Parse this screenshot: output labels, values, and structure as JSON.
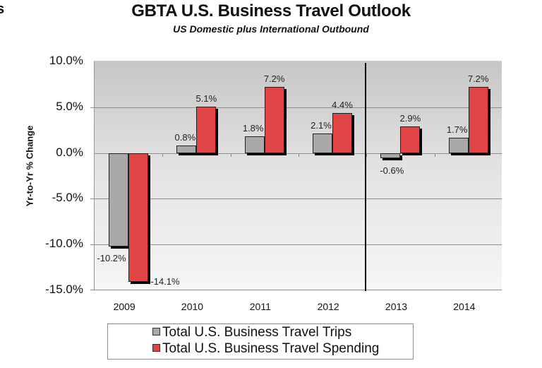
{
  "fragment_text": "s",
  "header": {
    "title": "GBTA U.S. Business Travel Outlook",
    "subtitle": "US Domestic plus International Outbound"
  },
  "colors": {
    "trips": "#a9a9a9",
    "spending": "#e04444",
    "plot_top": "#c6c6c6",
    "plot_bottom": "#f6f6f6"
  },
  "chart_data": {
    "type": "bar",
    "title": "GBTA U.S. Business Travel Outlook",
    "subtitle": "US Domestic plus International Outbound",
    "xlabel": "",
    "ylabel": "Yr-to-Yr % Change",
    "ylim": [
      -15.0,
      10.0
    ],
    "yticks": [
      "10.0%",
      "5.0%",
      "0.0%",
      "-5.0%",
      "-10.0%",
      "-15.0%"
    ],
    "grid": true,
    "legend_position": "bottom",
    "categories": [
      "2009",
      "2010",
      "2011",
      "2012",
      "2013",
      "2014"
    ],
    "series": [
      {
        "name": "Total U.S. Business Travel Trips",
        "values": [
          -10.2,
          0.8,
          1.8,
          2.1,
          -0.6,
          1.7
        ],
        "labels": [
          "-10.2%",
          "0.8%",
          "1.8%",
          "2.1%",
          "-0.6%",
          "1.7%"
        ]
      },
      {
        "name": "Total U.S. Business Travel Spending",
        "values": [
          -14.1,
          5.1,
          7.2,
          4.4,
          2.9,
          7.2
        ],
        "labels": [
          "-14.1%",
          "5.1%",
          "7.2%",
          "4.4%",
          "2.9%",
          "7.2%"
        ]
      }
    ],
    "annotations": [
      "Vertical divider between 2012 and 2013 (actual vs. forecast)"
    ]
  }
}
